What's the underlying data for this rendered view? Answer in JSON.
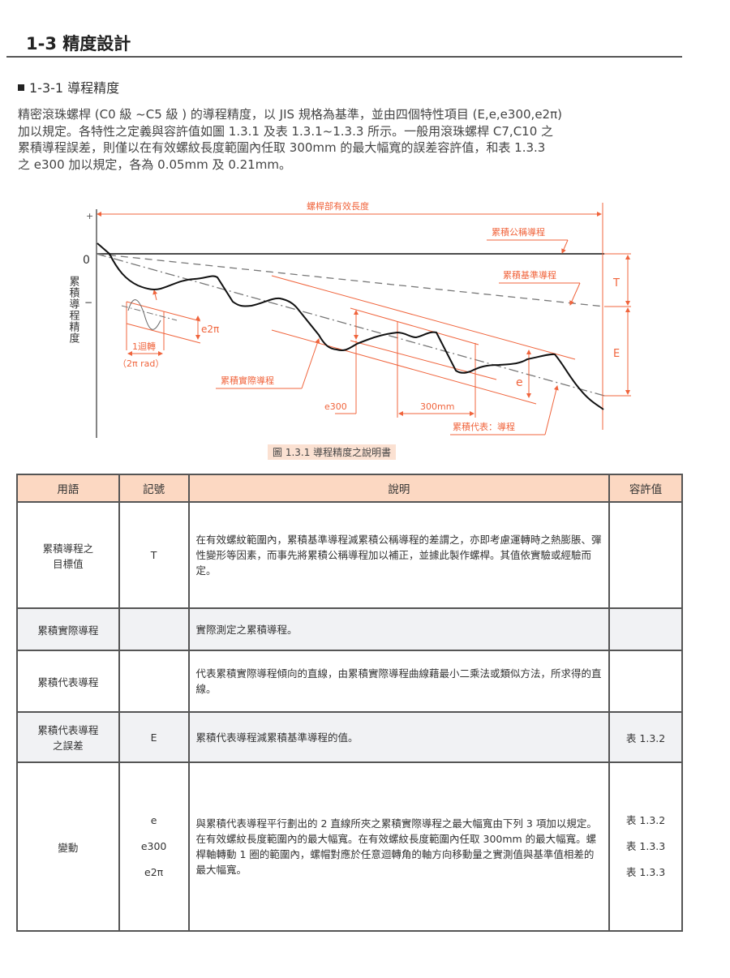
{
  "heading": "1-3 精度設計",
  "subheading": "1-3-1 導程精度",
  "paragraph": [
    "精密滾珠螺桿 (C0 級 ~C5 級 ) 的導程精度，以 JIS 規格為基準，並由四個特性項目 (E,e,e300,e2π)",
    "加以規定。各特性之定義與容許值如圖 1.3.1 及表 1.3.1~1.3.3 所示。一般用滾珠螺桿 C7,C10 之",
    "累積導程誤差，則僅以在有效螺紋長度範圍內任取 300mm 的最大幅寬的誤差容許值，和表 1.3.3",
    "之 e300 加以規定，各為 0.05mm 及 0.21mm。"
  ],
  "figure": {
    "y_axis_label": "累積導程精度",
    "plus": "+",
    "zero": "0",
    "minus": "−",
    "effective_length": "螺桿部有效長度",
    "nominal_lead": "累積公稱導程",
    "reference_lead": "累積基準導程",
    "actual_lead": "累積實際導程",
    "representative_lead": "累積代表：導程",
    "e300": "e300",
    "mm300": "300mm",
    "e": "e",
    "e2pi": "e2π",
    "one_turn": "1迴轉",
    "two_pi_rad": "（2π rad）",
    "T": "T",
    "E": "E",
    "caption": "圖 1.3.1 導程精度之說明書",
    "accent_color": "#f0643c"
  },
  "table": {
    "headers": [
      "用語",
      "記號",
      "說明",
      "容許值"
    ],
    "rows": [
      {
        "term": "累積導程之\n目標值",
        "symbol": "T",
        "desc": "在有效螺紋範圍內，累積基準導程減累積公稱導程的差謂之，亦即考慮運轉時之熱膨脹、彈性變形等因素，而事先將累積公稱導程加以補正，並據此製作螺桿。其值依實驗或經驗而定。",
        "tol": ""
      },
      {
        "term": "累積實際導程",
        "symbol": "",
        "desc": "實際測定之累積導程。",
        "tol": ""
      },
      {
        "term": "累積代表導程",
        "symbol": "",
        "desc": "代表累積實際導程傾向的直線，由累積實際導程曲線藉最小二乘法或類似方法，所求得的直線。",
        "tol": ""
      },
      {
        "term": "累積代表導程\n之誤差",
        "symbol": "E",
        "desc": "累積代表導程減累積基準導程的值。",
        "tol": "表 1.3.2"
      },
      {
        "term": "變動",
        "symbols": [
          "e",
          "e300",
          "e2π"
        ],
        "desc": "與累積代表導程平行劃出的 2 直線所夾之累積實際導程之最大幅寬由下列 3 項加以規定。在有效螺紋長度範圍內的最大幅寬。在有效螺紋長度範圍內任取 300mm 的最大幅寬。螺桿軸轉動 1 圈的範圍內，螺帽對應於任意迴轉角的軸方向移動量之實測值與基準值相差的最大幅寬。",
        "tols": [
          "表 1.3.2",
          "表 1.3.3",
          "表 1.3.3"
        ]
      }
    ]
  }
}
